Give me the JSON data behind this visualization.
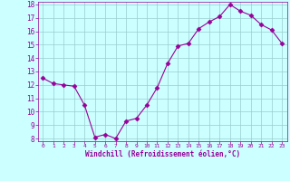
{
  "x": [
    0,
    1,
    2,
    3,
    4,
    5,
    6,
    7,
    8,
    9,
    10,
    11,
    12,
    13,
    14,
    15,
    16,
    17,
    18,
    19,
    20,
    21,
    22,
    23
  ],
  "y": [
    12.5,
    12.1,
    12.0,
    11.9,
    10.5,
    8.1,
    8.3,
    8.0,
    9.3,
    9.5,
    10.5,
    11.8,
    13.6,
    14.9,
    15.1,
    16.2,
    16.7,
    17.1,
    18.0,
    17.5,
    17.2,
    16.5,
    16.1,
    15.1
  ],
  "line_color": "#990099",
  "marker": "D",
  "marker_size": 2.5,
  "bg_color": "#ccffff",
  "grid_color": "#99cccc",
  "xlabel": "Windchill (Refroidissement éolien,°C)",
  "xlabel_color": "#990099",
  "tick_color": "#990099",
  "ylim": [
    7.8,
    18.2
  ],
  "xlim": [
    -0.5,
    23.5
  ],
  "yticks": [
    8,
    9,
    10,
    11,
    12,
    13,
    14,
    15,
    16,
    17,
    18
  ],
  "xticks": [
    0,
    1,
    2,
    3,
    4,
    5,
    6,
    7,
    8,
    9,
    10,
    11,
    12,
    13,
    14,
    15,
    16,
    17,
    18,
    19,
    20,
    21,
    22,
    23
  ],
  "figsize": [
    3.2,
    2.0
  ],
  "dpi": 100
}
